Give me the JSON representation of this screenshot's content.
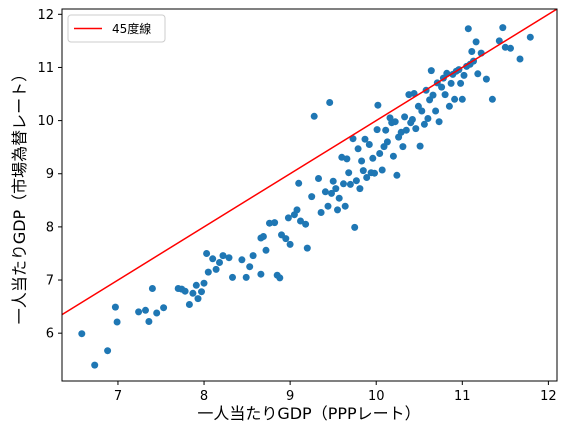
{
  "chart_data": {
    "type": "scatter",
    "xlabel": "一人当たりGDP（PPPレート）",
    "ylabel": "一人当たりGDP（市場為替レート）",
    "xlim": [
      6.35,
      12.1
    ],
    "ylim": [
      5.1,
      12.1
    ],
    "xticks": [
      7,
      8,
      9,
      10,
      11,
      12
    ],
    "yticks": [
      6,
      7,
      8,
      9,
      10,
      11,
      12
    ],
    "grid": false,
    "legend_position": "top-left",
    "points_color": "#1f77b4",
    "line": {
      "name": "45度線",
      "color": "#ff0000",
      "x": [
        6.35,
        12.1
      ],
      "y": [
        6.35,
        12.1
      ]
    },
    "points": [
      [
        6.58,
        5.99
      ],
      [
        6.73,
        5.4
      ],
      [
        6.88,
        5.67
      ],
      [
        6.97,
        6.49
      ],
      [
        6.99,
        6.21
      ],
      [
        7.24,
        6.4
      ],
      [
        7.32,
        6.43
      ],
      [
        7.36,
        6.22
      ],
      [
        7.4,
        6.84
      ],
      [
        7.45,
        6.38
      ],
      [
        7.53,
        6.48
      ],
      [
        7.7,
        6.84
      ],
      [
        7.74,
        6.83
      ],
      [
        7.78,
        6.79
      ],
      [
        7.83,
        6.54
      ],
      [
        7.87,
        6.75
      ],
      [
        7.91,
        6.9
      ],
      [
        7.93,
        6.65
      ],
      [
        7.97,
        6.78
      ],
      [
        8.0,
        6.94
      ],
      [
        8.03,
        7.5
      ],
      [
        8.05,
        7.15
      ],
      [
        8.1,
        7.4
      ],
      [
        8.14,
        7.2
      ],
      [
        8.18,
        7.33
      ],
      [
        8.22,
        7.46
      ],
      [
        8.29,
        7.42
      ],
      [
        8.33,
        7.05
      ],
      [
        8.44,
        7.38
      ],
      [
        8.49,
        7.05
      ],
      [
        8.53,
        7.25
      ],
      [
        8.57,
        7.46
      ],
      [
        8.66,
        7.11
      ],
      [
        8.66,
        7.79
      ],
      [
        8.69,
        7.82
      ],
      [
        8.72,
        7.56
      ],
      [
        8.76,
        8.07
      ],
      [
        8.82,
        8.08
      ],
      [
        8.85,
        7.09
      ],
      [
        8.88,
        7.04
      ],
      [
        8.9,
        7.85
      ],
      [
        8.95,
        7.78
      ],
      [
        8.98,
        8.17
      ],
      [
        9.0,
        7.67
      ],
      [
        9.05,
        8.23
      ],
      [
        9.08,
        8.32
      ],
      [
        9.1,
        8.82
      ],
      [
        9.12,
        8.11
      ],
      [
        9.18,
        8.05
      ],
      [
        9.2,
        7.6
      ],
      [
        9.25,
        8.57
      ],
      [
        9.28,
        10.08
      ],
      [
        9.33,
        8.91
      ],
      [
        9.36,
        8.27
      ],
      [
        9.41,
        8.66
      ],
      [
        9.44,
        8.39
      ],
      [
        9.46,
        10.34
      ],
      [
        9.48,
        8.63
      ],
      [
        9.5,
        8.86
      ],
      [
        9.53,
        8.72
      ],
      [
        9.55,
        8.32
      ],
      [
        9.57,
        8.54
      ],
      [
        9.6,
        9.31
      ],
      [
        9.62,
        8.81
      ],
      [
        9.64,
        8.39
      ],
      [
        9.66,
        9.28
      ],
      [
        9.68,
        9.02
      ],
      [
        9.7,
        8.8
      ],
      [
        9.73,
        9.66
      ],
      [
        9.75,
        7.99
      ],
      [
        9.77,
        8.87
      ],
      [
        9.79,
        9.47
      ],
      [
        9.81,
        8.72
      ],
      [
        9.83,
        9.24
      ],
      [
        9.85,
        9.06
      ],
      [
        9.87,
        9.65
      ],
      [
        9.89,
        8.93
      ],
      [
        9.92,
        9.55
      ],
      [
        9.94,
        9.02
      ],
      [
        9.96,
        9.29
      ],
      [
        9.98,
        9.01
      ],
      [
        10.01,
        9.83
      ],
      [
        10.02,
        10.29
      ],
      [
        10.04,
        9.38
      ],
      [
        10.07,
        9.07
      ],
      [
        10.09,
        9.51
      ],
      [
        10.11,
        9.82
      ],
      [
        10.13,
        9.6
      ],
      [
        10.16,
        10.05
      ],
      [
        10.18,
        9.96
      ],
      [
        10.2,
        9.33
      ],
      [
        10.22,
        9.98
      ],
      [
        10.24,
        8.97
      ],
      [
        10.26,
        9.69
      ],
      [
        10.29,
        9.78
      ],
      [
        10.31,
        9.51
      ],
      [
        10.33,
        10.07
      ],
      [
        10.35,
        9.82
      ],
      [
        10.38,
        10.49
      ],
      [
        10.4,
        9.96
      ],
      [
        10.42,
        10.02
      ],
      [
        10.44,
        10.51
      ],
      [
        10.46,
        9.85
      ],
      [
        10.49,
        10.27
      ],
      [
        10.51,
        9.52
      ],
      [
        10.53,
        10.18
      ],
      [
        10.56,
        9.93
      ],
      [
        10.58,
        10.57
      ],
      [
        10.6,
        10.04
      ],
      [
        10.62,
        10.39
      ],
      [
        10.64,
        10.94
      ],
      [
        10.66,
        10.48
      ],
      [
        10.69,
        10.18
      ],
      [
        10.71,
        10.71
      ],
      [
        10.73,
        9.98
      ],
      [
        10.76,
        10.63
      ],
      [
        10.78,
        10.8
      ],
      [
        10.8,
        10.49
      ],
      [
        10.82,
        10.89
      ],
      [
        10.85,
        10.27
      ],
      [
        10.87,
        10.7
      ],
      [
        10.89,
        10.87
      ],
      [
        10.91,
        10.4
      ],
      [
        10.93,
        10.93
      ],
      [
        10.96,
        10.96
      ],
      [
        10.98,
        10.7
      ],
      [
        11.0,
        10.4
      ],
      [
        11.02,
        10.85
      ],
      [
        11.05,
        11.02
      ],
      [
        11.07,
        11.73
      ],
      [
        11.09,
        11.06
      ],
      [
        11.11,
        11.3
      ],
      [
        11.13,
        11.12
      ],
      [
        11.16,
        11.48
      ],
      [
        11.18,
        10.88
      ],
      [
        11.22,
        11.27
      ],
      [
        11.28,
        10.78
      ],
      [
        11.35,
        10.4
      ],
      [
        11.43,
        11.5
      ],
      [
        11.47,
        11.75
      ],
      [
        11.5,
        11.38
      ],
      [
        11.56,
        11.36
      ],
      [
        11.67,
        11.16
      ],
      [
        11.79,
        11.57
      ]
    ]
  }
}
